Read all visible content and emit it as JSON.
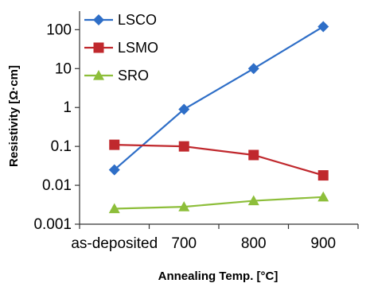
{
  "chart_data": {
    "type": "line",
    "xlabel": "Annealing Temp. [°C]",
    "ylabel": "Resistivity [Ω·cm]",
    "categories": [
      "as-deposited",
      "700",
      "800",
      "900"
    ],
    "y_scale": "log",
    "ylim": [
      0.001,
      300
    ],
    "y_ticks": [
      0.001,
      0.01,
      0.1,
      1,
      10,
      100
    ],
    "y_tick_labels": [
      "0.001",
      "0.01",
      "0.1",
      "1",
      "10",
      "100"
    ],
    "grid": false,
    "legend_position": "top-left",
    "series": [
      {
        "name": "LSCO",
        "color": "#2e6ec7",
        "marker": "diamond",
        "values": [
          0.025,
          0.9,
          10,
          120
        ]
      },
      {
        "name": "LSMO",
        "color": "#c0282d",
        "marker": "square",
        "values": [
          0.11,
          0.1,
          0.06,
          0.018
        ]
      },
      {
        "name": "SRO",
        "color": "#8dbe3a",
        "marker": "triangle",
        "values": [
          0.0025,
          0.0028,
          0.004,
          0.005
        ]
      }
    ]
  }
}
